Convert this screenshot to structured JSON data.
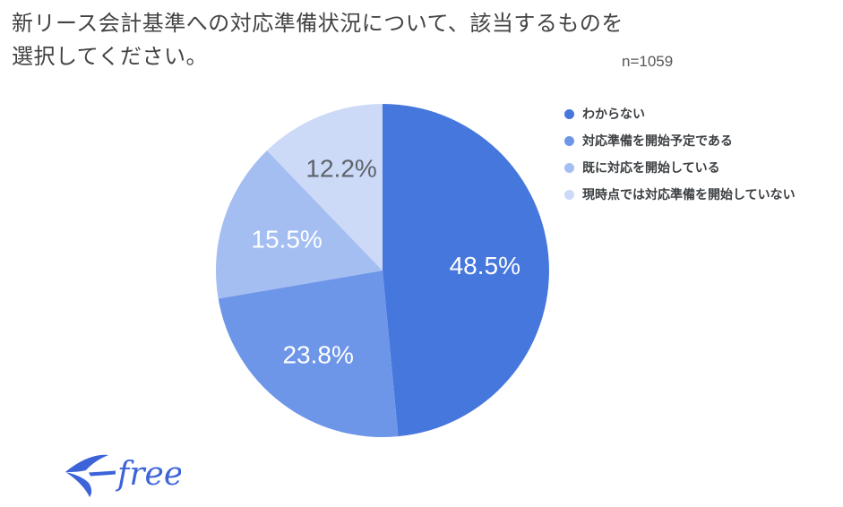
{
  "header": {
    "title_lines": [
      "新リース会計基準への対応準備状況について、該当するものを",
      "選択してください。"
    ],
    "sample_size": "n=1059"
  },
  "chart_data": {
    "type": "pie",
    "title": "新リース会計基準への対応準備状況について、該当するものを選択してください。",
    "sample_label": "n=1059",
    "categories": [
      "わからない",
      "対応準備を開始予定である",
      "既に対応を開始している",
      "現時点では対応準備を開始していない"
    ],
    "values": [
      48.5,
      23.8,
      15.5,
      12.2
    ],
    "unit": "%",
    "labels": [
      "48.5%",
      "23.8%",
      "15.5%",
      "12.2%"
    ],
    "slice_colors": [
      "#4677DD",
      "#6D95E8",
      "#A4BEF2",
      "#CCDAF8"
    ],
    "label_colors": [
      "#FFFFFF",
      "#FFFFFF",
      "#FFFFFF",
      "#5F6368"
    ],
    "label_radius_factors": [
      0.615,
      0.635,
      0.605,
      0.66
    ],
    "start_angle_deg": -90,
    "direction": "clockwise",
    "legend_position": "right",
    "grid": false
  },
  "footer": {
    "logo_text": "freee",
    "logo_color": "#3D63D9",
    "logo_icon": "swallow-icon"
  }
}
